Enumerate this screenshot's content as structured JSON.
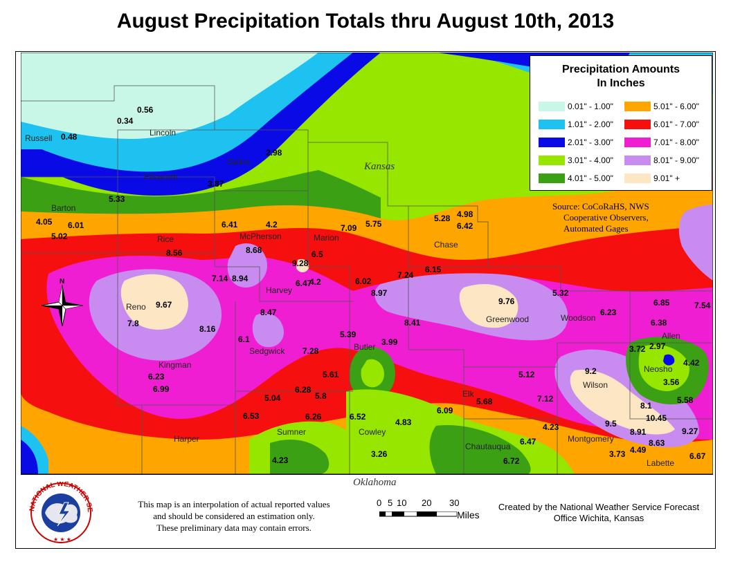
{
  "title": "August Precipitation Totals thru August 10th, 2013",
  "legend": {
    "title_line1": "Precipitation Amounts",
    "title_line2": "In Inches",
    "items": [
      {
        "label": "0.01\" - 1.00\"",
        "color": "#c8f7e8"
      },
      {
        "label": "5.01\" - 6.00\"",
        "color": "#ffa500"
      },
      {
        "label": "1.01\" - 2.00\"",
        "color": "#1ec2f0"
      },
      {
        "label": "6.01\" - 7.00\"",
        "color": "#f50f0f"
      },
      {
        "label": "2.01\" - 3.00\"",
        "color": "#0a0ae6"
      },
      {
        "label": "7.01\" - 8.00\"",
        "color": "#f01ed2"
      },
      {
        "label": "3.01\" - 4.00\"",
        "color": "#96e600"
      },
      {
        "label": "8.01\" - 9.00\"",
        "color": "#c88cf0"
      },
      {
        "label": "4.01\" - 5.00\"",
        "color": "#3ca014"
      },
      {
        "label": "9.01\" +",
        "color": "#fde6c3"
      }
    ]
  },
  "source": {
    "line1": "Source: CoCoRaHS, NWS",
    "line2": "Cooperative Observers,",
    "line3": "Automated Gages"
  },
  "state_labels": {
    "kansas": "Kansas",
    "oklahoma": "Oklahoma"
  },
  "counties": [
    {
      "name": "Russell"
    },
    {
      "name": "Lincoln"
    },
    {
      "name": "Ellsworth"
    },
    {
      "name": "Saline"
    },
    {
      "name": "Barton"
    },
    {
      "name": "Rice"
    },
    {
      "name": "McPherson"
    },
    {
      "name": "Marion"
    },
    {
      "name": "Chase"
    },
    {
      "name": "Reno"
    },
    {
      "name": "Harvey"
    },
    {
      "name": "Butler"
    },
    {
      "name": "Greenwood"
    },
    {
      "name": "Woodson"
    },
    {
      "name": "Allen"
    },
    {
      "name": "Kingman"
    },
    {
      "name": "Sedgwick"
    },
    {
      "name": "Neosho"
    },
    {
      "name": "Wilson"
    },
    {
      "name": "Elk"
    },
    {
      "name": "Harper"
    },
    {
      "name": "Sumner"
    },
    {
      "name": "Cowley"
    },
    {
      "name": "Chautauqua"
    },
    {
      "name": "Montgomery"
    },
    {
      "name": "Labette"
    }
  ],
  "values": [
    "0.48",
    "0.56",
    "0.34",
    "2.98",
    "3.87",
    "5.33",
    "4.05",
    "6.01",
    "5.02",
    "6.41",
    "4.2",
    "8.68",
    "7.09",
    "5.75",
    "5.28",
    "4.98",
    "6.42",
    "8.56",
    "9.28",
    "6.5",
    "7.14",
    "8.94",
    "6.47",
    "4.2",
    "6.02",
    "7.24",
    "6.15",
    "9.67",
    "7.8",
    "8.97",
    "8.47",
    "8.16",
    "6.1",
    "7.28",
    "8.41",
    "9.76",
    "5.32",
    "6.23",
    "6.85",
    "7.54",
    "6.38",
    "5.39",
    "3.99",
    "3.72",
    "2.97",
    "9.2",
    "4.42",
    "5.61",
    "6.28",
    "5.8",
    "5.12",
    "3.56",
    "6.23",
    "6.99",
    "5.04",
    "7.12",
    "5.68",
    "5.58",
    "6.53",
    "6.26",
    "6.52",
    "4.83",
    "6.09",
    "8.1",
    "10.45",
    "4.23",
    "9.5",
    "8.91",
    "9.27",
    "6.47",
    "8.63",
    "3.26",
    "4.23",
    "6.72",
    "3.73",
    "4.49",
    "6.67"
  ],
  "scale": {
    "ticks": [
      "0",
      "5",
      "10",
      "20",
      "30"
    ],
    "unit": "Miles"
  },
  "logo": {
    "text": "NATIONAL WEATHER SERVICE"
  },
  "disclaimer": {
    "line1": "This map is an interpolation of actual reported values",
    "line2": "and should be considered an estimation only.",
    "line3": "These preliminary data may contain errors."
  },
  "credit": {
    "line1": "Created by the National Weather Service Forecast",
    "line2": "Office Wichita, Kansas"
  },
  "compass": {
    "north_label": "N"
  }
}
